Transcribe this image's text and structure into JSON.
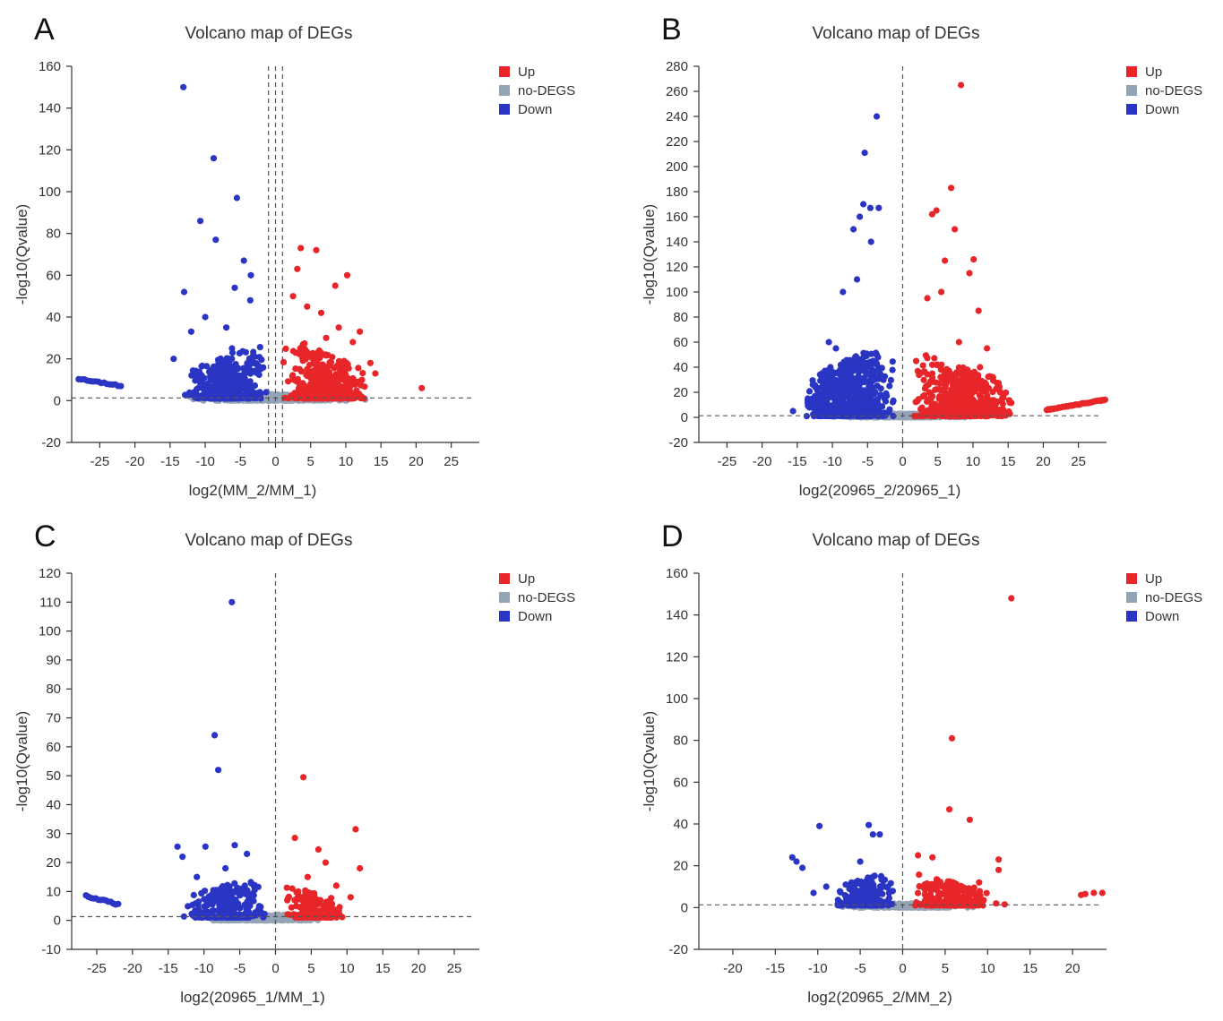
{
  "figure": {
    "colors": {
      "up": "#e8262a",
      "no_degs": "#95a4b5",
      "down": "#2a35c4",
      "axis": "#333333",
      "threshold": "#555555"
    }
  },
  "chart_data": [
    {
      "panel": "A",
      "type": "scatter",
      "title": "Volcano map of DEGs",
      "xlabel": "log2(MM_2/MM_1)",
      "ylabel": "-log10(Qvalue)",
      "xlim": [
        -29,
        29
      ],
      "ylim": [
        -20,
        160
      ],
      "xticks": [
        -25,
        -20,
        -15,
        -10,
        -5,
        0,
        5,
        10,
        15,
        20,
        25
      ],
      "yticks": [
        -20,
        0,
        20,
        40,
        60,
        80,
        100,
        120,
        140,
        160
      ],
      "hline": 1.3,
      "vlines": [
        -1,
        0,
        1
      ],
      "legend": [
        {
          "label": "Up",
          "color": "#e8262a"
        },
        {
          "label": "no-DEGS",
          "color": "#95a4b5"
        },
        {
          "label": "Down",
          "color": "#2a35c4"
        }
      ],
      "series": [
        {
          "name": "Up",
          "points": [
            [
              3.6,
              73
            ],
            [
              5.8,
              72
            ],
            [
              10.2,
              60
            ],
            [
              3.1,
              63
            ],
            [
              8.5,
              55
            ],
            [
              2.5,
              50
            ],
            [
              4.5,
              45
            ],
            [
              6.5,
              42
            ],
            [
              12.0,
              33
            ],
            [
              14.2,
              13
            ],
            [
              20.8,
              6
            ],
            [
              9.0,
              35
            ],
            [
              7.2,
              30
            ],
            [
              11.0,
              28
            ],
            [
              13.5,
              18
            ]
          ]
        },
        {
          "name": "Down",
          "points": [
            [
              -13.1,
              150
            ],
            [
              -8.8,
              116
            ],
            [
              -5.5,
              97
            ],
            [
              -10.7,
              86
            ],
            [
              -8.5,
              77
            ],
            [
              -4.5,
              67
            ],
            [
              -13.0,
              52
            ],
            [
              -5.8,
              54
            ],
            [
              -3.5,
              60
            ],
            [
              -3.6,
              48
            ],
            [
              -10.0,
              40
            ],
            [
              -12.0,
              33
            ],
            [
              -7.0,
              35
            ],
            [
              -14.5,
              20
            ],
            [
              -6.2,
              25
            ]
          ]
        }
      ],
      "clusters": [
        {
          "name": "no-DEGS",
          "x_range": [
            -13,
            14
          ],
          "y_range": [
            0,
            3
          ],
          "n": 500,
          "shape": "band"
        },
        {
          "name": "Down",
          "x_range": [
            -13,
            -1
          ],
          "y_range": [
            1,
            30
          ],
          "n": 420,
          "shape": "fan",
          "apex": -1
        },
        {
          "name": "Up",
          "x_range": [
            1,
            13
          ],
          "y_range": [
            1,
            32
          ],
          "n": 480,
          "shape": "fan",
          "apex": 1
        },
        {
          "name": "Down",
          "x_range": [
            -28,
            -22
          ],
          "y_range": [
            10.5,
            7
          ],
          "n": 16,
          "shape": "line"
        }
      ]
    },
    {
      "panel": "B",
      "type": "scatter",
      "title": "Volcano map of DEGs",
      "xlabel": "log2(20965_2/20965_1)",
      "ylabel": "-log10(Qvalue)",
      "xlim": [
        -29,
        29
      ],
      "ylim": [
        -20,
        280
      ],
      "xticks": [
        -25,
        -20,
        -15,
        -10,
        -5,
        0,
        5,
        10,
        15,
        20,
        25
      ],
      "yticks": [
        -20,
        0,
        20,
        40,
        60,
        80,
        100,
        120,
        140,
        160,
        180,
        200,
        220,
        240,
        260,
        280
      ],
      "hline": 1.3,
      "vlines": [
        0
      ],
      "legend": [
        {
          "label": "Up",
          "color": "#e8262a"
        },
        {
          "label": "no-DEGS",
          "color": "#95a4b5"
        },
        {
          "label": "Down",
          "color": "#2a35c4"
        }
      ],
      "series": [
        {
          "name": "Up",
          "points": [
            [
              8.3,
              265
            ],
            [
              6.9,
              183
            ],
            [
              4.8,
              165
            ],
            [
              4.2,
              162
            ],
            [
              7.4,
              150
            ],
            [
              10.1,
              126
            ],
            [
              6.0,
              125
            ],
            [
              9.5,
              115
            ],
            [
              10.8,
              85
            ],
            [
              12.0,
              55
            ],
            [
              11.0,
              40
            ],
            [
              8.0,
              60
            ],
            [
              5.5,
              100
            ],
            [
              3.5,
              95
            ]
          ]
        },
        {
          "name": "Down",
          "points": [
            [
              -3.7,
              240
            ],
            [
              -5.4,
              211
            ],
            [
              -3.4,
              167
            ],
            [
              -5.6,
              170
            ],
            [
              -6.1,
              160
            ],
            [
              -4.6,
              167
            ],
            [
              -7.0,
              150
            ],
            [
              -4.5,
              140
            ],
            [
              -6.5,
              110
            ],
            [
              -8.5,
              100
            ],
            [
              -9.5,
              55
            ],
            [
              -10.5,
              60
            ],
            [
              -11.5,
              35
            ],
            [
              -15.6,
              5
            ],
            [
              -13.5,
              15
            ]
          ]
        }
      ],
      "clusters": [
        {
          "name": "no-DEGS",
          "x_range": [
            -12,
            12
          ],
          "y_range": [
            0,
            3
          ],
          "n": 500,
          "shape": "band"
        },
        {
          "name": "Down",
          "x_range": [
            -14,
            -1
          ],
          "y_range": [
            1,
            55
          ],
          "n": 700,
          "shape": "fan",
          "apex": -4
        },
        {
          "name": "Up",
          "x_range": [
            1,
            16
          ],
          "y_range": [
            1,
            50
          ],
          "n": 650,
          "shape": "fan",
          "apex": 3
        },
        {
          "name": "Up",
          "x_range": [
            20.5,
            28.8
          ],
          "y_range": [
            6,
            14
          ],
          "n": 40,
          "shape": "line"
        }
      ]
    },
    {
      "panel": "C",
      "type": "scatter",
      "title": "Volcano map of DEGs",
      "xlabel": "log2(20965_1/MM_1)",
      "ylabel": "-log10(Qvalue)",
      "xlim": [
        -28.5,
        28.5
      ],
      "ylim": [
        -10,
        120
      ],
      "xticks": [
        -25,
        -20,
        -15,
        -10,
        -5,
        0,
        5,
        10,
        15,
        20,
        25
      ],
      "yticks": [
        -10,
        0,
        10,
        20,
        30,
        40,
        50,
        60,
        70,
        80,
        90,
        100,
        110,
        120
      ],
      "hline": 1.3,
      "vlines": [
        0
      ],
      "legend": [
        {
          "label": "Up",
          "color": "#e8262a"
        },
        {
          "label": "no-DEGS",
          "color": "#95a4b5"
        },
        {
          "label": "Down",
          "color": "#2a35c4"
        }
      ],
      "series": [
        {
          "name": "Up",
          "points": [
            [
              3.9,
              49.5
            ],
            [
              11.2,
              31.5
            ],
            [
              2.7,
              28.5
            ],
            [
              6.0,
              24.5
            ],
            [
              11.8,
              18
            ],
            [
              4.5,
              15
            ],
            [
              7.0,
              20
            ],
            [
              8.5,
              12
            ],
            [
              3.2,
              10
            ],
            [
              10.5,
              8
            ]
          ]
        },
        {
          "name": "Down",
          "points": [
            [
              -6.1,
              110
            ],
            [
              -8.5,
              64
            ],
            [
              -8.0,
              52
            ],
            [
              -13.7,
              25.5
            ],
            [
              -9.8,
              25.5
            ],
            [
              -5.7,
              26
            ],
            [
              -13.0,
              22
            ],
            [
              -11.0,
              15
            ],
            [
              -7.0,
              18
            ],
            [
              -4.0,
              23
            ]
          ]
        }
      ],
      "clusters": [
        {
          "name": "no-DEGS",
          "x_range": [
            -12,
            8
          ],
          "y_range": [
            0,
            2
          ],
          "n": 400,
          "shape": "band"
        },
        {
          "name": "Down",
          "x_range": [
            -13,
            -1
          ],
          "y_range": [
            1,
            14
          ],
          "n": 260,
          "shape": "fan",
          "apex": -4
        },
        {
          "name": "Up",
          "x_range": [
            1,
            10
          ],
          "y_range": [
            1,
            12
          ],
          "n": 200,
          "shape": "fan",
          "apex": 2
        },
        {
          "name": "Down",
          "x_range": [
            -26.5,
            -22
          ],
          "y_range": [
            8.5,
            5.5
          ],
          "n": 14,
          "shape": "line"
        }
      ]
    },
    {
      "panel": "D",
      "type": "scatter",
      "title": "Volcano map of DEGs",
      "xlabel": "log2(20965_2/MM_2)",
      "ylabel": "-log10(Qvalue)",
      "xlim": [
        -24,
        24
      ],
      "ylim": [
        -20,
        160
      ],
      "xticks": [
        -20,
        -15,
        -10,
        -5,
        0,
        5,
        10,
        15,
        20
      ],
      "yticks": [
        -20,
        0,
        20,
        40,
        60,
        80,
        100,
        120,
        140,
        160
      ],
      "hline": 1.3,
      "vlines": [
        0
      ],
      "legend": [
        {
          "label": "Up",
          "color": "#e8262a"
        },
        {
          "label": "no-DEGS",
          "color": "#95a4b5"
        },
        {
          "label": "Down",
          "color": "#2a35c4"
        }
      ],
      "series": [
        {
          "name": "Up",
          "points": [
            [
              12.8,
              148
            ],
            [
              5.8,
              81
            ],
            [
              5.5,
              47
            ],
            [
              7.9,
              42
            ],
            [
              11.3,
              23
            ],
            [
              11.3,
              18
            ],
            [
              3.5,
              24
            ],
            [
              1.8,
              25
            ],
            [
              21.0,
              6
            ],
            [
              21.5,
              6.5
            ],
            [
              22.5,
              7
            ],
            [
              23.5,
              7
            ],
            [
              11.0,
              2
            ],
            [
              12.0,
              1.5
            ],
            [
              9.0,
              12
            ]
          ]
        },
        {
          "name": "Down",
          "points": [
            [
              -9.8,
              39
            ],
            [
              -4.0,
              39.5
            ],
            [
              -3.5,
              35
            ],
            [
              -2.7,
              35
            ],
            [
              -13.0,
              24
            ],
            [
              -12.5,
              22
            ],
            [
              -11.8,
              19
            ],
            [
              -5.0,
              22
            ],
            [
              -9.0,
              10
            ],
            [
              -10.5,
              7
            ]
          ]
        }
      ],
      "clusters": [
        {
          "name": "no-DEGS",
          "x_range": [
            -8,
            9
          ],
          "y_range": [
            0,
            2
          ],
          "n": 350,
          "shape": "band"
        },
        {
          "name": "Down",
          "x_range": [
            -8,
            -1
          ],
          "y_range": [
            1,
            16
          ],
          "n": 220,
          "shape": "fan",
          "apex": -3
        },
        {
          "name": "Up",
          "x_range": [
            1,
            10
          ],
          "y_range": [
            1,
            16
          ],
          "n": 260,
          "shape": "fan",
          "apex": 2
        }
      ]
    }
  ]
}
